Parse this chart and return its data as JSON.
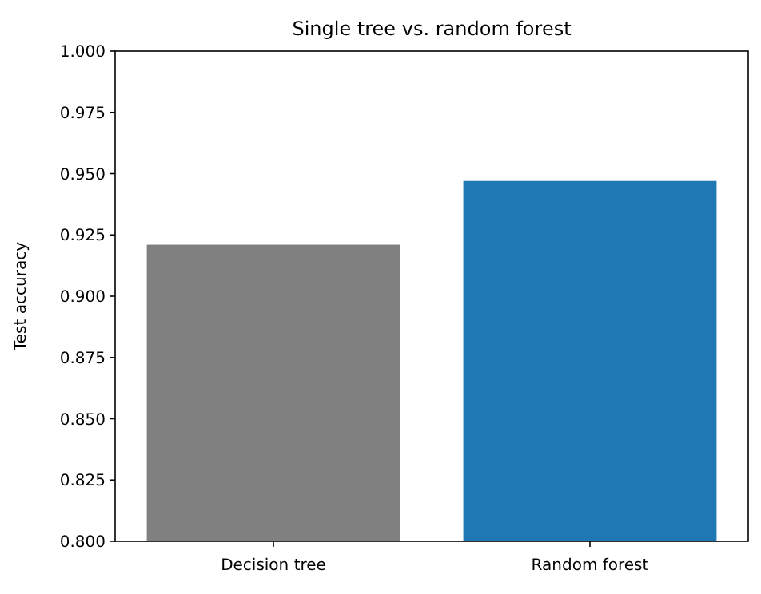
{
  "chart_data": {
    "type": "bar",
    "title": "Single tree vs. random forest",
    "ylabel": "Test accuracy",
    "categories": [
      "Decision tree",
      "Random forest"
    ],
    "values": [
      0.921,
      0.947
    ],
    "colors": [
      "#808080",
      "#1f77b4"
    ],
    "ylim": [
      0.8,
      1.0
    ],
    "yticks": [
      {
        "value": 0.8,
        "label": "0.800"
      },
      {
        "value": 0.825,
        "label": "0.825"
      },
      {
        "value": 0.85,
        "label": "0.850"
      },
      {
        "value": 0.875,
        "label": "0.875"
      },
      {
        "value": 0.9,
        "label": "0.900"
      },
      {
        "value": 0.925,
        "label": "0.925"
      },
      {
        "value": 0.95,
        "label": "0.950"
      },
      {
        "value": 0.975,
        "label": "0.975"
      },
      {
        "value": 1.0,
        "label": "1.000"
      }
    ],
    "grid": false
  }
}
